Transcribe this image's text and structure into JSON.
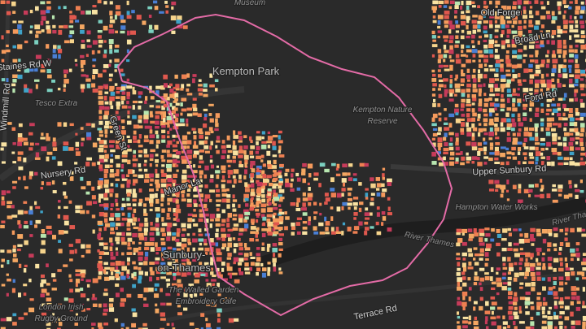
{
  "map": {
    "places": [
      "Museum",
      "Kempton Park",
      "Kempton Nature",
      "Reserve",
      "Tesco Extra",
      "Sunbury-",
      "on-Thames",
      "The Walled Garden",
      "Embroidery Cafe",
      "London Irish",
      "Rugby Ground",
      "Hampton Water Works"
    ],
    "roads": [
      "Upper Sunbury Rd",
      "Terrace Rd",
      "Windmill Rd",
      "Nursery Rd",
      "Green St",
      "Staines Rd W",
      "Manor La",
      "Old Forge",
      "Broad Ln",
      "Ford Rd"
    ],
    "water": [
      "River Thames",
      "River Tha"
    ]
  }
}
